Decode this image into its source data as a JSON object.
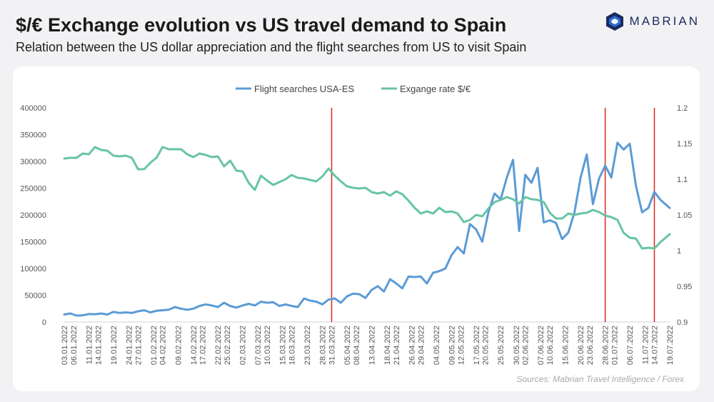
{
  "header": {
    "title": "$/€ Exchange evolution vs US travel demand to Spain",
    "subtitle": "Relation between the US dollar appreciation and the flight searches from US to visit Spain",
    "brand": "MABRIAN"
  },
  "source": "Sources: Mabrian Travel Intelligence / Forex",
  "colors": {
    "searches": "#5b9bd5",
    "rate": "#66c4a4",
    "marker": "#d9261c"
  },
  "chart_data": {
    "type": "line",
    "legend": [
      "Flight searches USA-ES",
      "Exgange rate $/€"
    ],
    "legend_position": "top-center",
    "x_range": [
      "2022-01-03",
      "2022-07-19"
    ],
    "x_tick_labels": [
      "03.01.2022",
      "06.01.2022",
      "11.01.2022",
      "14.01.2022",
      "19.01.2022",
      "24.01.2022",
      "27.01.2022",
      "01.02.2022",
      "04.02.2022",
      "09.02.2022",
      "14.02.2022",
      "17.02.2022",
      "22.02.2022",
      "25.02.2022",
      "02.03.2022",
      "07.03.2022",
      "10.03.2022",
      "15.03.2022",
      "18.03.2022",
      "23.03.2022",
      "28.03.2022",
      "31.03.2022",
      "05.04.2022",
      "08.04.2022",
      "13.04.2022",
      "18.04.2022",
      "21.04.2022",
      "26.04.2022",
      "29.04.2022",
      "04.05.2022",
      "09.05.2022",
      "12.05.2022",
      "17.05.2022",
      "20.05.2022",
      "25.05.2022",
      "30.05.2022",
      "02.06.2022",
      "07.06.2022",
      "10.06.2022",
      "15.06.2022",
      "20.06.2022",
      "23.06.2022",
      "28.06.2022",
      "01.07.2022",
      "06.07.2022",
      "11.07.2022",
      "14.07.2022",
      "19.07.2022"
    ],
    "y_left": {
      "min": 0,
      "max": 400000,
      "ticks": [
        "0",
        "50000",
        "100000",
        "150000",
        "200000",
        "250000",
        "300000",
        "350000",
        "400000"
      ]
    },
    "y_right": {
      "min": 0.9,
      "max": 1.2,
      "ticks": [
        "0.9",
        "0.95",
        "1",
        "1.05",
        "1.1",
        "1.15",
        "1.2"
      ]
    },
    "grid": false,
    "vertical_markers": [
      "2022-03-31",
      "2022-06-28",
      "2022-07-14"
    ],
    "series": [
      {
        "name": "Flight searches USA-ES",
        "axis": "left",
        "points": [
          [
            "2022-01-03",
            14000
          ],
          [
            "2022-01-05",
            16000
          ],
          [
            "2022-01-07",
            12000
          ],
          [
            "2022-01-09",
            12500
          ],
          [
            "2022-01-11",
            15000
          ],
          [
            "2022-01-13",
            14500
          ],
          [
            "2022-01-15",
            16000
          ],
          [
            "2022-01-17",
            14000
          ],
          [
            "2022-01-19",
            19000
          ],
          [
            "2022-01-21",
            17000
          ],
          [
            "2022-01-23",
            18000
          ],
          [
            "2022-01-25",
            17000
          ],
          [
            "2022-01-27",
            20000
          ],
          [
            "2022-01-29",
            22000
          ],
          [
            "2022-01-31",
            18000
          ],
          [
            "2022-02-02",
            21000
          ],
          [
            "2022-02-04",
            22000
          ],
          [
            "2022-02-06",
            23000
          ],
          [
            "2022-02-08",
            28000
          ],
          [
            "2022-02-10",
            25000
          ],
          [
            "2022-02-12",
            23000
          ],
          [
            "2022-02-14",
            25000
          ],
          [
            "2022-02-16",
            30000
          ],
          [
            "2022-02-18",
            33000
          ],
          [
            "2022-02-20",
            31000
          ],
          [
            "2022-02-22",
            28000
          ],
          [
            "2022-02-24",
            36000
          ],
          [
            "2022-02-26",
            30000
          ],
          [
            "2022-02-28",
            27000
          ],
          [
            "2022-03-02",
            31000
          ],
          [
            "2022-03-04",
            34000
          ],
          [
            "2022-03-06",
            31000
          ],
          [
            "2022-03-08",
            38000
          ],
          [
            "2022-03-10",
            36000
          ],
          [
            "2022-03-12",
            37000
          ],
          [
            "2022-03-14",
            30000
          ],
          [
            "2022-03-16",
            33000
          ],
          [
            "2022-03-18",
            30000
          ],
          [
            "2022-03-20",
            28000
          ],
          [
            "2022-03-22",
            44000
          ],
          [
            "2022-03-24",
            40000
          ],
          [
            "2022-03-26",
            38000
          ],
          [
            "2022-03-28",
            33000
          ],
          [
            "2022-03-30",
            42000
          ],
          [
            "2022-04-01",
            44000
          ],
          [
            "2022-04-03",
            36000
          ],
          [
            "2022-04-05",
            48000
          ],
          [
            "2022-04-07",
            53000
          ],
          [
            "2022-04-09",
            52000
          ],
          [
            "2022-04-11",
            45000
          ],
          [
            "2022-04-13",
            60000
          ],
          [
            "2022-04-15",
            67000
          ],
          [
            "2022-04-17",
            57000
          ],
          [
            "2022-04-19",
            80000
          ],
          [
            "2022-04-21",
            72000
          ],
          [
            "2022-04-23",
            63000
          ],
          [
            "2022-04-25",
            85000
          ],
          [
            "2022-04-27",
            84000
          ],
          [
            "2022-04-29",
            85000
          ],
          [
            "2022-05-01",
            72000
          ],
          [
            "2022-05-03",
            92000
          ],
          [
            "2022-05-05",
            95000
          ],
          [
            "2022-05-07",
            100000
          ],
          [
            "2022-05-09",
            125000
          ],
          [
            "2022-05-11",
            140000
          ],
          [
            "2022-05-13",
            128000
          ],
          [
            "2022-05-15",
            183000
          ],
          [
            "2022-05-17",
            173000
          ],
          [
            "2022-05-19",
            150000
          ],
          [
            "2022-05-21",
            205000
          ],
          [
            "2022-05-23",
            240000
          ],
          [
            "2022-05-25",
            229000
          ],
          [
            "2022-05-27",
            270000
          ],
          [
            "2022-05-29",
            303000
          ],
          [
            "2022-05-31",
            170000
          ],
          [
            "2022-06-02",
            275000
          ],
          [
            "2022-06-04",
            260000
          ],
          [
            "2022-06-06",
            288000
          ],
          [
            "2022-06-08",
            186000
          ],
          [
            "2022-06-10",
            190000
          ],
          [
            "2022-06-12",
            185000
          ],
          [
            "2022-06-14",
            155000
          ],
          [
            "2022-06-16",
            167000
          ],
          [
            "2022-06-18",
            205000
          ],
          [
            "2022-06-20",
            270000
          ],
          [
            "2022-06-22",
            313000
          ],
          [
            "2022-06-24",
            220000
          ],
          [
            "2022-06-26",
            268000
          ],
          [
            "2022-06-28",
            292000
          ],
          [
            "2022-06-30",
            270000
          ],
          [
            "2022-07-02",
            335000
          ],
          [
            "2022-07-04",
            322000
          ],
          [
            "2022-07-06",
            333000
          ],
          [
            "2022-07-08",
            255000
          ],
          [
            "2022-07-10",
            205000
          ],
          [
            "2022-07-12",
            213000
          ],
          [
            "2022-07-14",
            243000
          ],
          [
            "2022-07-16",
            228000
          ],
          [
            "2022-07-19",
            213000
          ]
        ]
      },
      {
        "name": "Exgange rate $/€",
        "axis": "right",
        "points": [
          [
            "2022-01-03",
            1.129
          ],
          [
            "2022-01-05",
            1.13
          ],
          [
            "2022-01-07",
            1.13
          ],
          [
            "2022-01-09",
            1.136
          ],
          [
            "2022-01-11",
            1.135
          ],
          [
            "2022-01-13",
            1.145
          ],
          [
            "2022-01-15",
            1.141
          ],
          [
            "2022-01-17",
            1.14
          ],
          [
            "2022-01-19",
            1.133
          ],
          [
            "2022-01-21",
            1.132
          ],
          [
            "2022-01-23",
            1.133
          ],
          [
            "2022-01-25",
            1.13
          ],
          [
            "2022-01-27",
            1.114
          ],
          [
            "2022-01-29",
            1.114
          ],
          [
            "2022-01-31",
            1.123
          ],
          [
            "2022-02-02",
            1.13
          ],
          [
            "2022-02-04",
            1.145
          ],
          [
            "2022-02-06",
            1.142
          ],
          [
            "2022-02-08",
            1.142
          ],
          [
            "2022-02-10",
            1.142
          ],
          [
            "2022-02-12",
            1.135
          ],
          [
            "2022-02-14",
            1.131
          ],
          [
            "2022-02-16",
            1.136
          ],
          [
            "2022-02-18",
            1.134
          ],
          [
            "2022-02-20",
            1.131
          ],
          [
            "2022-02-22",
            1.132
          ],
          [
            "2022-02-24",
            1.118
          ],
          [
            "2022-02-26",
            1.126
          ],
          [
            "2022-02-28",
            1.112
          ],
          [
            "2022-03-02",
            1.111
          ],
          [
            "2022-03-04",
            1.095
          ],
          [
            "2022-03-06",
            1.085
          ],
          [
            "2022-03-08",
            1.105
          ],
          [
            "2022-03-10",
            1.098
          ],
          [
            "2022-03-12",
            1.092
          ],
          [
            "2022-03-14",
            1.096
          ],
          [
            "2022-03-16",
            1.1
          ],
          [
            "2022-03-18",
            1.106
          ],
          [
            "2022-03-20",
            1.102
          ],
          [
            "2022-03-22",
            1.101
          ],
          [
            "2022-03-24",
            1.099
          ],
          [
            "2022-03-26",
            1.097
          ],
          [
            "2022-03-28",
            1.104
          ],
          [
            "2022-03-30",
            1.115
          ],
          [
            "2022-04-01",
            1.105
          ],
          [
            "2022-04-03",
            1.097
          ],
          [
            "2022-04-05",
            1.09
          ],
          [
            "2022-04-07",
            1.088
          ],
          [
            "2022-04-09",
            1.087
          ],
          [
            "2022-04-11",
            1.088
          ],
          [
            "2022-04-13",
            1.082
          ],
          [
            "2022-04-15",
            1.08
          ],
          [
            "2022-04-17",
            1.082
          ],
          [
            "2022-04-19",
            1.077
          ],
          [
            "2022-04-21",
            1.083
          ],
          [
            "2022-04-23",
            1.079
          ],
          [
            "2022-04-25",
            1.07
          ],
          [
            "2022-04-27",
            1.06
          ],
          [
            "2022-04-29",
            1.052
          ],
          [
            "2022-05-01",
            1.055
          ],
          [
            "2022-05-03",
            1.052
          ],
          [
            "2022-05-05",
            1.06
          ],
          [
            "2022-05-07",
            1.054
          ],
          [
            "2022-05-09",
            1.055
          ],
          [
            "2022-05-11",
            1.052
          ],
          [
            "2022-05-13",
            1.04
          ],
          [
            "2022-05-15",
            1.043
          ],
          [
            "2022-05-17",
            1.05
          ],
          [
            "2022-05-19",
            1.048
          ],
          [
            "2022-05-21",
            1.059
          ],
          [
            "2022-05-23",
            1.068
          ],
          [
            "2022-05-25",
            1.071
          ],
          [
            "2022-05-27",
            1.075
          ],
          [
            "2022-05-29",
            1.072
          ],
          [
            "2022-05-31",
            1.066
          ],
          [
            "2022-06-02",
            1.075
          ],
          [
            "2022-06-04",
            1.072
          ],
          [
            "2022-06-06",
            1.071
          ],
          [
            "2022-06-08",
            1.068
          ],
          [
            "2022-06-10",
            1.053
          ],
          [
            "2022-06-12",
            1.045
          ],
          [
            "2022-06-14",
            1.045
          ],
          [
            "2022-06-16",
            1.052
          ],
          [
            "2022-06-18",
            1.05
          ],
          [
            "2022-06-20",
            1.052
          ],
          [
            "2022-06-22",
            1.053
          ],
          [
            "2022-06-24",
            1.057
          ],
          [
            "2022-06-26",
            1.054
          ],
          [
            "2022-06-28",
            1.049
          ],
          [
            "2022-06-30",
            1.047
          ],
          [
            "2022-07-02",
            1.043
          ],
          [
            "2022-07-04",
            1.025
          ],
          [
            "2022-07-06",
            1.018
          ],
          [
            "2022-07-08",
            1.017
          ],
          [
            "2022-07-10",
            1.003
          ],
          [
            "2022-07-12",
            1.004
          ],
          [
            "2022-07-14",
            1.003
          ],
          [
            "2022-07-16",
            1.012
          ],
          [
            "2022-07-19",
            1.023
          ]
        ]
      }
    ]
  }
}
